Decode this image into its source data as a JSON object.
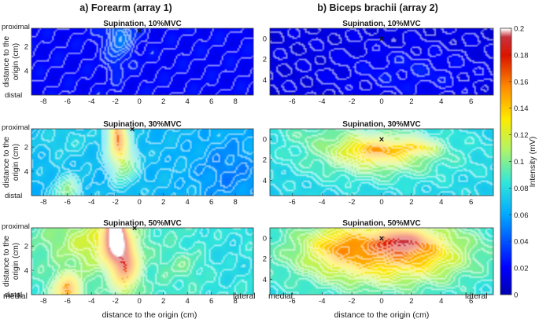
{
  "header": {
    "col_a": "a) Forearm (array 1)",
    "col_b": "b) Biceps brachii (array 2)"
  },
  "labels": {
    "proximal": "proximal",
    "distal": "distal",
    "ylabel_line1": "distance to the",
    "ylabel_line2": "origin (cm)",
    "xlabel": "distance to the origin (cm)",
    "medial": "medial",
    "lateral": "lateral",
    "colorbar_label": "Intensity (mV)"
  },
  "colors": {
    "colormap": "jet-white",
    "marker": "#111111"
  },
  "chart_data": [
    {
      "type": "heatmap",
      "panel": "forearm-10",
      "title": "Supination, 10%MVC",
      "xlim": [
        -9,
        9.5
      ],
      "ylim": [
        6,
        0.5
      ],
      "xticks": [
        -8,
        -6,
        -4,
        -2,
        0,
        2,
        4,
        6,
        8
      ],
      "yticks": [
        2,
        4
      ],
      "cross": [
        0,
        0.7
      ],
      "field": {
        "base": 0.02,
        "blobs": [
          {
            "x": -1.6,
            "y": 1.0,
            "sx": 0.9,
            "sy": 1.2,
            "amp": 0.025
          },
          {
            "x": -1.9,
            "y": 3.0,
            "sx": 0.5,
            "sy": 1.2,
            "amp": 0.01
          }
        ]
      }
    },
    {
      "type": "heatmap",
      "panel": "biceps-10",
      "title": "Supination, 10%MVC",
      "xlim": [
        -7.5,
        7.5
      ],
      "ylim": [
        -1,
        5.5
      ],
      "xticks": [
        -6,
        -4,
        -2,
        0,
        2,
        4,
        6
      ],
      "yticks": [
        0,
        2,
        4
      ],
      "cross": [
        0,
        0
      ],
      "field": {
        "base": 0.012,
        "blobs": [
          {
            "x": 2.0,
            "y": 1.2,
            "sx": 3.2,
            "sy": 1.8,
            "amp": 0.012
          }
        ]
      }
    },
    {
      "type": "heatmap",
      "panel": "forearm-30",
      "title": "Supination, 30%MVC",
      "xlim": [
        -9,
        9.5
      ],
      "ylim": [
        6,
        0.5
      ],
      "xticks": [
        -8,
        -6,
        -4,
        -2,
        0,
        2,
        4,
        6,
        8
      ],
      "yticks": [
        2,
        4
      ],
      "cross": [
        -0.6,
        0.5
      ],
      "field": {
        "base": 0.065,
        "blobs": [
          {
            "x": -1.8,
            "y": 1.0,
            "sx": 0.55,
            "sy": 1.4,
            "amp": 0.09
          },
          {
            "x": -1.2,
            "y": 3.3,
            "sx": 0.8,
            "sy": 1.3,
            "amp": 0.035
          },
          {
            "x": -6.0,
            "y": 5.6,
            "sx": 0.8,
            "sy": 0.9,
            "amp": 0.035
          },
          {
            "x": -6.0,
            "y": 1.4,
            "sx": 2.0,
            "sy": 1.2,
            "amp": 0.012
          },
          {
            "x": 7.5,
            "y": 4.0,
            "sx": 2.0,
            "sy": 2.0,
            "amp": -0.015
          }
        ]
      }
    },
    {
      "type": "heatmap",
      "panel": "biceps-30",
      "title": "Supination, 30%MVC",
      "xlim": [
        -7.5,
        7.5
      ],
      "ylim": [
        -1,
        5.5
      ],
      "xticks": [
        -6,
        -4,
        -2,
        0,
        2,
        4,
        6
      ],
      "yticks": [
        0,
        2,
        4
      ],
      "cross": [
        0,
        0
      ],
      "field": {
        "base": 0.075,
        "blobs": [
          {
            "x": -0.3,
            "y": 3.1,
            "sx": 3.6,
            "sy": 1.8,
            "amp": 0.035
          },
          {
            "x": -0.4,
            "y": 3.4,
            "sx": 1.6,
            "sy": 0.9,
            "amp": 0.04
          },
          {
            "x": 2.4,
            "y": 3.7,
            "sx": 0.9,
            "sy": 0.5,
            "amp": 0.03
          },
          {
            "x": -5.0,
            "y": 5.2,
            "sx": 2.0,
            "sy": 1.0,
            "amp": 0.01
          }
        ]
      }
    },
    {
      "type": "heatmap",
      "panel": "forearm-50",
      "title": "Supination, 50%MVC",
      "xlim": [
        -9,
        9.5
      ],
      "ylim": [
        6,
        0.5
      ],
      "xticks": [
        -8,
        -6,
        -4,
        -2,
        0,
        2,
        4,
        6,
        8
      ],
      "yticks": [
        2,
        4
      ],
      "cross": [
        -0.4,
        0.5
      ],
      "field": {
        "base": 0.088,
        "blobs": [
          {
            "x": -2.0,
            "y": 1.0,
            "sx": 0.55,
            "sy": 1.2,
            "amp": 0.13
          },
          {
            "x": -1.2,
            "y": 3.5,
            "sx": 0.75,
            "sy": 1.5,
            "amp": 0.075
          },
          {
            "x": -2.6,
            "y": 2.0,
            "sx": 1.6,
            "sy": 1.6,
            "amp": 0.03
          },
          {
            "x": -6.0,
            "y": 5.6,
            "sx": 0.8,
            "sy": 0.9,
            "amp": 0.065
          },
          {
            "x": -5.5,
            "y": 1.6,
            "sx": 2.2,
            "sy": 1.5,
            "amp": 0.018
          },
          {
            "x": 3.8,
            "y": 3.6,
            "sx": 1.4,
            "sy": 0.8,
            "amp": 0.01
          },
          {
            "x": 7.5,
            "y": 3.0,
            "sx": 2.2,
            "sy": 2.4,
            "amp": -0.01
          }
        ]
      }
    },
    {
      "type": "heatmap",
      "panel": "biceps-50",
      "title": "Supination, 50%MVC",
      "xlim": [
        -7.5,
        7.5
      ],
      "ylim": [
        -1,
        5.5
      ],
      "xticks": [
        -6,
        -4,
        -2,
        0,
        2,
        4,
        6
      ],
      "yticks": [
        0,
        2,
        4
      ],
      "cross": [
        0,
        0
      ],
      "field": {
        "base": 0.08,
        "blobs": [
          {
            "x": 0.0,
            "y": 3.2,
            "sx": 3.8,
            "sy": 2.2,
            "amp": 0.075
          },
          {
            "x": 1.4,
            "y": 4.2,
            "sx": 1.1,
            "sy": 0.7,
            "amp": 0.05
          },
          {
            "x": -3.0,
            "y": 3.7,
            "sx": 1.1,
            "sy": 1.2,
            "amp": 0.018
          },
          {
            "x": 3.3,
            "y": 2.8,
            "sx": 1.2,
            "sy": 1.2,
            "amp": 0.01
          }
        ]
      }
    }
  ],
  "colorbar": {
    "min": 0,
    "max": 0.2,
    "ticks": [
      0,
      0.02,
      0.04,
      0.06,
      0.08,
      0.1,
      0.12,
      0.14,
      0.16,
      0.18,
      0.2
    ]
  }
}
